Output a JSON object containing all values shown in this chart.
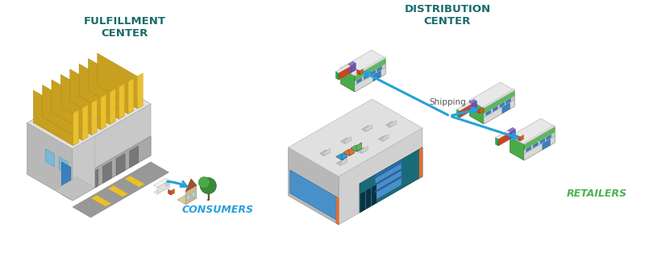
{
  "background_color": "#ffffff",
  "figsize": [
    8.0,
    3.29
  ],
  "dpi": 100,
  "fulfillment_title": "FULFILLMENT\nCENTER",
  "fulfillment_title_color": "#1a6b6b",
  "fulfillment_title_fontsize": 9.5,
  "consumers_label": "CONSUMERS",
  "consumers_label_color": "#29a0d8",
  "consumers_label_fontsize": 9,
  "distribution_title": "DISTRIBUTION\nCENTER",
  "distribution_title_color": "#1a6b6b",
  "distribution_title_fontsize": 9.5,
  "retailers_label": "RETAILERS",
  "retailers_label_color": "#4db34d",
  "retailers_label_fontsize": 9,
  "shipping_label": "Shipping",
  "shipping_label_color": "#555555",
  "shipping_label_fontsize": 7.5,
  "arrow_color": "#29a0d8",
  "arrow_lw": 2.2
}
